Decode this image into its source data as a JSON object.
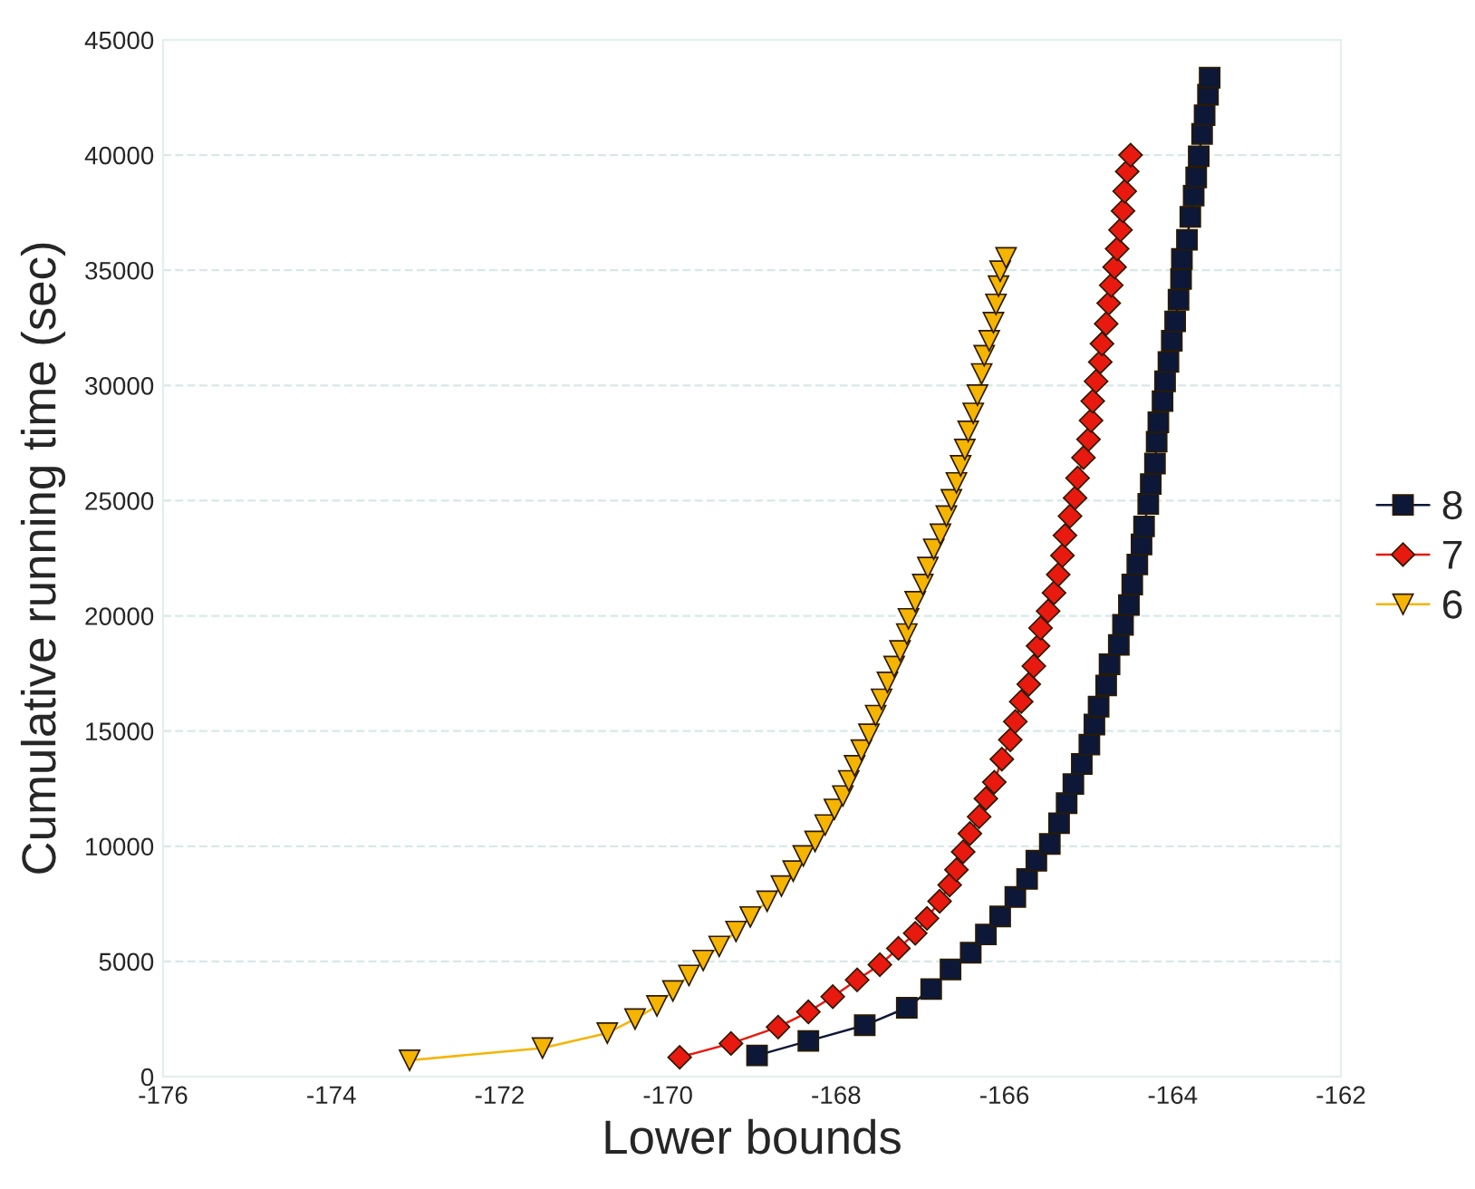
{
  "chart_data": {
    "type": "line",
    "xlabel": "Lower bounds",
    "ylabel": "Cumulative running time (sec)",
    "xlim": [
      -176,
      -162
    ],
    "xticks": [
      -176,
      -174,
      -172,
      -170,
      -168,
      -166,
      -164,
      -162
    ],
    "ylim": [
      0,
      45000
    ],
    "yticks": [
      0,
      5000,
      10000,
      15000,
      20000,
      25000,
      30000,
      35000,
      40000,
      45000
    ],
    "grid": "y",
    "legend": "right",
    "line_style": "solid",
    "series": [
      {
        "name": "8",
        "color": "#0d1838",
        "marker": "square",
        "x": [
          -168.94,
          -168.33,
          -167.66,
          -167.16,
          -166.87,
          -166.64,
          -166.4,
          -166.22,
          -166.05,
          -165.87,
          -165.73,
          -165.62,
          -165.46,
          -165.35,
          -165.26,
          -165.18,
          -165.08,
          -164.99,
          -164.93,
          -164.88,
          -164.79,
          -164.75,
          -164.64,
          -164.59,
          -164.52,
          -164.48,
          -164.42,
          -164.37,
          -164.34,
          -164.29,
          -164.26,
          -164.21,
          -164.19,
          -164.17,
          -164.12,
          -164.09,
          -164.05,
          -164.01,
          -163.97,
          -163.93,
          -163.9,
          -163.89,
          -163.83,
          -163.79,
          -163.75,
          -163.72,
          -163.69,
          -163.65,
          -163.62,
          -163.58,
          -163.56
        ],
        "values": [
          920,
          1550,
          2230,
          2990,
          3800,
          4650,
          5380,
          6170,
          6950,
          7800,
          8580,
          9370,
          10100,
          11000,
          11870,
          12700,
          13570,
          14410,
          15280,
          16060,
          16980,
          17900,
          18740,
          19610,
          20470,
          21360,
          22230,
          23100,
          23880,
          24860,
          25720,
          26610,
          27560,
          28400,
          29320,
          30180,
          31020,
          31940,
          32780,
          33720,
          34620,
          35490,
          36320,
          37320,
          38240,
          39030,
          39950,
          40920,
          41730,
          42620,
          43360
        ]
      },
      {
        "name": "7",
        "color": "#e8190e",
        "marker": "diamond",
        "x": [
          -169.86,
          -169.25,
          -168.69,
          -168.33,
          -168.04,
          -167.75,
          -167.48,
          -167.26,
          -167.06,
          -166.92,
          -166.77,
          -166.65,
          -166.57,
          -166.49,
          -166.41,
          -166.3,
          -166.22,
          -166.12,
          -166.03,
          -165.93,
          -165.87,
          -165.8,
          -165.71,
          -165.65,
          -165.6,
          -165.57,
          -165.48,
          -165.41,
          -165.36,
          -165.31,
          -165.28,
          -165.22,
          -165.16,
          -165.13,
          -165.06,
          -165.0,
          -164.97,
          -164.95,
          -164.91,
          -164.86,
          -164.84,
          -164.79,
          -164.76,
          -164.73,
          -164.69,
          -164.66,
          -164.62,
          -164.59,
          -164.57,
          -164.54,
          -164.5
        ],
        "values": [
          840,
          1440,
          2150,
          2810,
          3470,
          4200,
          4860,
          5570,
          6220,
          6870,
          7610,
          8320,
          8980,
          9760,
          10550,
          11280,
          12070,
          12780,
          13780,
          14620,
          15410,
          16280,
          17030,
          17820,
          18690,
          19470,
          20210,
          21000,
          21790,
          22620,
          23490,
          24330,
          25120,
          25980,
          26870,
          27660,
          28480,
          29320,
          30180,
          31020,
          31810,
          32680,
          33570,
          34350,
          35140,
          35930,
          36750,
          37580,
          38430,
          39290,
          40000
        ]
      },
      {
        "name": "6",
        "color": "#f5b400",
        "marker": "triangle",
        "x": [
          -173.07,
          -171.49,
          -170.72,
          -170.39,
          -170.13,
          -169.94,
          -169.75,
          -169.58,
          -169.39,
          -169.19,
          -169.02,
          -168.82,
          -168.65,
          -168.51,
          -168.39,
          -168.25,
          -168.13,
          -168.02,
          -167.92,
          -167.85,
          -167.78,
          -167.7,
          -167.61,
          -167.53,
          -167.46,
          -167.39,
          -167.31,
          -167.24,
          -167.16,
          -167.14,
          -167.06,
          -166.97,
          -166.91,
          -166.84,
          -166.76,
          -166.69,
          -166.63,
          -166.57,
          -166.52,
          -166.47,
          -166.43,
          -166.37,
          -166.32,
          -166.27,
          -166.24,
          -166.18,
          -166.13,
          -166.1,
          -166.07,
          -166.05,
          -165.98
        ],
        "values": [
          710,
          1240,
          1890,
          2500,
          3070,
          3720,
          4390,
          5040,
          5650,
          6300,
          6930,
          7610,
          8270,
          8920,
          9580,
          10210,
          10920,
          11600,
          12180,
          12840,
          13490,
          14170,
          14860,
          15670,
          16380,
          17110,
          17800,
          18480,
          19210,
          19870,
          20610,
          21360,
          22100,
          22890,
          23540,
          24330,
          25040,
          25770,
          26510,
          27220,
          28010,
          28790,
          29580,
          30500,
          31290,
          31940,
          32730,
          33520,
          34310,
          34960,
          35540
        ]
      }
    ]
  }
}
